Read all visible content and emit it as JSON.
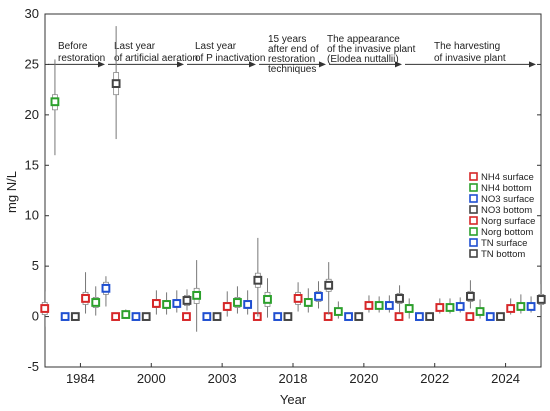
{
  "chart_data": {
    "type": "scatter",
    "xlabel": "Year",
    "ylabel": "mg N/L",
    "ylim": [
      -5,
      30
    ],
    "yticks": [
      -5,
      0,
      5,
      10,
      15,
      20,
      25,
      30
    ],
    "categories": [
      "1984",
      "2000",
      "2003",
      "2018",
      "2020",
      "2022",
      "2024"
    ],
    "grid": false,
    "legend_position": "right",
    "series": [
      {
        "name": "NH4 surface",
        "color": "#d62728",
        "mean": [
          0.8,
          0.0,
          0.0,
          0.0,
          0.0,
          0.0,
          0.0
        ],
        "box_low": [
          0.2,
          -0.1,
          -0.1,
          -0.1,
          -0.1,
          -0.1,
          -0.1
        ],
        "box_high": [
          1.4,
          0.1,
          0.1,
          0.1,
          0.1,
          0.1,
          0.1
        ],
        "whisker_low": [
          -1.0,
          -0.2,
          -0.2,
          -0.2,
          -0.2,
          -0.2,
          -0.2
        ],
        "whisker_high": [
          2.5,
          0.2,
          0.2,
          0.2,
          0.2,
          0.2,
          0.2
        ]
      },
      {
        "name": "NH4 bottom",
        "color": "#2ca02c",
        "mean": [
          21.3,
          0.2,
          2.1,
          1.7,
          0.5,
          0.8,
          0.5
        ],
        "box_low": [
          20.5,
          0.0,
          1.3,
          1.0,
          0.2,
          0.4,
          0.2
        ],
        "box_high": [
          22.0,
          0.4,
          2.8,
          2.4,
          0.8,
          1.2,
          0.8
        ],
        "whisker_low": [
          16.0,
          -0.1,
          -1.5,
          -0.1,
          -0.2,
          -0.2,
          -0.2
        ],
        "whisker_high": [
          25.5,
          0.7,
          5.6,
          3.8,
          1.5,
          1.8,
          1.7
        ]
      },
      {
        "name": "NO3 surface",
        "color": "#1f4fd1",
        "mean": [
          0.0,
          0.0,
          0.0,
          0.0,
          0.0,
          0.0,
          0.0
        ],
        "box_low": [
          -0.1,
          -0.1,
          -0.1,
          -0.1,
          -0.1,
          -0.1,
          -0.1
        ],
        "box_high": [
          0.1,
          0.1,
          0.1,
          0.1,
          0.1,
          0.1,
          0.1
        ],
        "whisker_low": [
          -0.2,
          -0.2,
          -0.2,
          -0.2,
          -0.2,
          -0.2,
          -0.2
        ],
        "whisker_high": [
          0.3,
          0.2,
          0.2,
          0.2,
          0.2,
          0.2,
          0.2
        ]
      },
      {
        "name": "NO3 bottom",
        "color": "#444444",
        "mean": [
          0.0,
          0.0,
          0.0,
          0.0,
          0.0,
          0.0,
          0.0
        ],
        "box_low": [
          -0.1,
          -0.1,
          -0.1,
          -0.1,
          -0.1,
          -0.1,
          -0.1
        ],
        "box_high": [
          0.1,
          0.1,
          0.1,
          0.1,
          0.1,
          0.1,
          0.1
        ],
        "whisker_low": [
          -0.2,
          -0.2,
          -0.2,
          -0.2,
          -0.2,
          -0.2,
          -0.2
        ],
        "whisker_high": [
          0.3,
          0.2,
          0.2,
          0.2,
          0.2,
          0.2,
          0.2
        ]
      },
      {
        "name": "Norg surface",
        "color": "#d62728",
        "mean": [
          1.8,
          1.3,
          1.0,
          1.8,
          1.1,
          0.9,
          0.8
        ],
        "box_low": [
          1.2,
          0.9,
          0.6,
          1.2,
          0.8,
          0.6,
          0.5
        ],
        "box_high": [
          2.4,
          1.7,
          1.4,
          2.4,
          1.4,
          1.2,
          1.1
        ],
        "whisker_low": [
          0.3,
          0.2,
          0.0,
          0.5,
          0.4,
          0.3,
          0.2
        ],
        "whisker_high": [
          4.4,
          2.6,
          2.5,
          3.4,
          2.1,
          1.8,
          1.8
        ]
      },
      {
        "name": "Norg bottom",
        "color": "#2ca02c",
        "mean": [
          1.4,
          1.2,
          1.4,
          1.4,
          1.1,
          0.9,
          1.0
        ],
        "box_low": [
          0.9,
          0.8,
          0.9,
          1.0,
          0.8,
          0.6,
          0.7
        ],
        "box_high": [
          1.9,
          1.6,
          1.9,
          1.8,
          1.4,
          1.2,
          1.3
        ],
        "whisker_low": [
          0.1,
          0.2,
          0.3,
          0.4,
          0.4,
          0.3,
          0.3
        ],
        "whisker_high": [
          3.0,
          2.4,
          3.0,
          2.8,
          2.0,
          1.8,
          2.2
        ]
      },
      {
        "name": "TN surface",
        "color": "#1f4fd1",
        "mean": [
          2.8,
          1.3,
          1.2,
          2.0,
          1.1,
          1.0,
          1.0
        ],
        "box_low": [
          2.2,
          0.9,
          0.8,
          1.5,
          0.8,
          0.7,
          0.7
        ],
        "box_high": [
          3.4,
          1.7,
          1.6,
          2.5,
          1.4,
          1.3,
          1.3
        ],
        "whisker_low": [
          1.0,
          0.4,
          0.2,
          0.8,
          0.4,
          0.4,
          0.4
        ],
        "whisker_high": [
          4.0,
          2.6,
          2.6,
          3.5,
          2.1,
          1.9,
          2.0
        ]
      },
      {
        "name": "TN bottom",
        "color": "#444444",
        "mean": [
          23.1,
          1.6,
          3.6,
          3.1,
          1.8,
          2.0,
          1.7
        ],
        "box_low": [
          22.0,
          1.1,
          2.9,
          2.5,
          1.3,
          1.5,
          1.2
        ],
        "box_high": [
          24.2,
          2.1,
          4.3,
          3.7,
          2.3,
          2.5,
          2.2
        ],
        "whisker_low": [
          17.6,
          0.6,
          0.0,
          0.2,
          0.4,
          0.8,
          0.0
        ],
        "whisker_high": [
          28.8,
          2.7,
          7.8,
          5.4,
          3.1,
          3.6,
          3.2
        ]
      }
    ],
    "annotations": [
      {
        "lines": [
          "Before",
          "restoration"
        ]
      },
      {
        "lines": [
          "Last year",
          "of artificial aeration"
        ]
      },
      {
        "lines": [
          "Last year",
          "of P inactivation"
        ]
      },
      {
        "lines": [
          "15 years",
          "after end of",
          "restoration",
          "techniques"
        ]
      },
      {
        "lines": [
          "The appearance",
          "of the invasive plant",
          "(Elodea nuttallii)"
        ]
      },
      {
        "lines": [
          "The harvesting",
          "of invasive plant"
        ]
      }
    ]
  }
}
